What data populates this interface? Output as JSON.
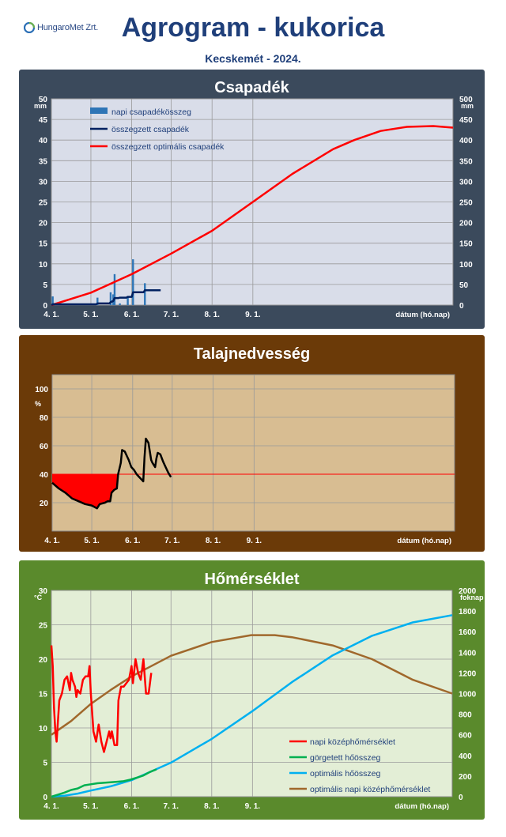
{
  "header": {
    "logo_text": "HungaroMet Zrt.",
    "title": "Agrogram - kukorica",
    "subtitle": "Kecskemét - 2024."
  },
  "chart_data": [
    {
      "type": "bar",
      "title": "Csapadék",
      "ylabel_left": "mm",
      "ylabel_right": "mm",
      "xlabel": "dátum (hó.nap)",
      "x_ticks": [
        "4. 1.",
        "5. 1.",
        "6. 1.",
        "7. 1.",
        "8. 1.",
        "9. 1."
      ],
      "ylim_left": [
        0,
        50
      ],
      "yticks_left": [
        0,
        5,
        10,
        15,
        20,
        25,
        30,
        35,
        40,
        45,
        50
      ],
      "ylim_right": [
        0,
        500
      ],
      "yticks_right": [
        0,
        50,
        100,
        150,
        200,
        250,
        300,
        350,
        400,
        450,
        500
      ],
      "legend": [
        "napi csapadékösszeg",
        "összegzett csapadék",
        "összegzett optimális csapadék"
      ],
      "colors": {
        "bg": "#d9dde9",
        "panel": "#3b4a5c",
        "bar": "#2e75b6",
        "cumulative": "#002060",
        "optimal": "#ff0000"
      },
      "series": [
        {
          "name": "napi csapadékösszeg",
          "axis": "left",
          "points": [
            [
              1,
              2.1
            ],
            [
              2,
              0.5
            ],
            [
              35,
              1.8
            ],
            [
              45,
              3.1
            ],
            [
              47,
              2.6
            ],
            [
              48,
              7.5
            ],
            [
              52,
              0.4
            ],
            [
              58,
              2.2
            ],
            [
              62,
              11.1
            ],
            [
              71,
              5.3
            ]
          ]
        },
        {
          "name": "összegzett csapadék",
          "axis": "right",
          "points": [
            [
              0,
              0
            ],
            [
              1,
              2
            ],
            [
              34,
              2
            ],
            [
              35,
              4
            ],
            [
              44,
              4
            ],
            [
              45,
              7
            ],
            [
              47,
              10
            ],
            [
              48,
              17
            ],
            [
              51,
              17
            ],
            [
              52,
              18
            ],
            [
              57,
              18
            ],
            [
              58,
              20
            ],
            [
              61,
              20
            ],
            [
              62,
              31
            ],
            [
              70,
              31
            ],
            [
              71,
              36
            ],
            [
              83,
              36
            ]
          ]
        },
        {
          "name": "összegzett optimális csapadék",
          "axis": "right",
          "points": [
            [
              0,
              0
            ],
            [
              30,
              30
            ],
            [
              61,
              75
            ],
            [
              91,
              125
            ],
            [
              122,
              180
            ],
            [
              153,
              250
            ],
            [
              183,
              318
            ],
            [
              214,
              378
            ],
            [
              230,
              400
            ],
            [
              250,
              422
            ],
            [
              270,
              432
            ],
            [
              290,
              434
            ],
            [
              305,
              430
            ]
          ]
        }
      ]
    },
    {
      "type": "area",
      "title": "Talajnedvesség",
      "ylabel": "%",
      "xlabel": "dátum (hó.nap)",
      "x_ticks": [
        "4. 1.",
        "5. 1.",
        "6. 1.",
        "7. 1.",
        "8. 1.",
        "9. 1."
      ],
      "ylim": [
        0,
        110
      ],
      "yticks": [
        20,
        40,
        60,
        80,
        100
      ],
      "threshold": 40,
      "colors": {
        "bg": "#d8bd92",
        "panel": "#6b3a08",
        "line": "#000000",
        "fill": "#ff0000",
        "threshold": "#ff0000"
      },
      "series": [
        {
          "name": "",
          "points": [
            [
              0,
              34
            ],
            [
              5,
              30
            ],
            [
              10,
              27
            ],
            [
              15,
              23
            ],
            [
              20,
              21
            ],
            [
              25,
              19
            ],
            [
              30,
              18
            ],
            [
              34,
              16
            ],
            [
              36,
              19
            ],
            [
              40,
              20
            ],
            [
              42,
              21
            ],
            [
              44,
              21
            ],
            [
              45,
              27
            ],
            [
              47,
              29
            ],
            [
              49,
              30
            ],
            [
              50,
              40
            ],
            [
              52,
              48
            ],
            [
              53,
              57
            ],
            [
              55,
              56
            ],
            [
              58,
              50
            ],
            [
              60,
              45
            ],
            [
              62,
              43
            ],
            [
              64,
              40
            ],
            [
              66,
              38
            ],
            [
              68,
              36
            ],
            [
              69,
              35
            ],
            [
              70,
              52
            ],
            [
              71,
              65
            ],
            [
              73,
              62
            ],
            [
              75,
              50
            ],
            [
              76,
              48
            ],
            [
              78,
              45
            ],
            [
              79,
              51
            ],
            [
              80,
              55
            ],
            [
              82,
              54
            ],
            [
              84,
              49
            ],
            [
              86,
              45
            ],
            [
              88,
              41
            ],
            [
              90,
              38
            ]
          ]
        }
      ]
    },
    {
      "type": "line",
      "title": "Hőmérséklet",
      "ylabel_left": "°C",
      "ylabel_right": "foknap",
      "xlabel": "dátum (hó.nap)",
      "x_ticks": [
        "4. 1.",
        "5. 1.",
        "6. 1.",
        "7. 1.",
        "8. 1.",
        "9. 1."
      ],
      "ylim_left": [
        0,
        30
      ],
      "yticks_left": [
        0,
        5,
        10,
        15,
        20,
        25,
        30
      ],
      "ylim_right": [
        0,
        2000
      ],
      "yticks_right": [
        0,
        200,
        400,
        600,
        800,
        1000,
        1200,
        1400,
        1600,
        1800,
        2000
      ],
      "legend": [
        "napi középhőmérséklet",
        "görgetett hőösszeg",
        "optimális hőösszeg",
        "optimális napi középhőmérséklet"
      ],
      "colors": {
        "bg": "#e3eed6",
        "panel": "#5a8a2c",
        "daily": "#ff0000",
        "rolling": "#00b050",
        "optimal_sum": "#00b0f0",
        "optimal_daily": "#a0682c"
      },
      "series": [
        {
          "name": "napi középhőmérséklet",
          "axis": "left",
          "points": [
            [
              0,
              22
            ],
            [
              1,
              19
            ],
            [
              2,
              13
            ],
            [
              3,
              9.5
            ],
            [
              4,
              8
            ],
            [
              5,
              11
            ],
            [
              6,
              14
            ],
            [
              8,
              15
            ],
            [
              10,
              17
            ],
            [
              12,
              17.5
            ],
            [
              14,
              15.5
            ],
            [
              15,
              18
            ],
            [
              16,
              17
            ],
            [
              18,
              16
            ],
            [
              19,
              14.5
            ],
            [
              20,
              15.5
            ],
            [
              22,
              15
            ],
            [
              24,
              17
            ],
            [
              26,
              17.5
            ],
            [
              28,
              17.5
            ],
            [
              29,
              19
            ],
            [
              30,
              15
            ],
            [
              32,
              9.5
            ],
            [
              34,
              8
            ],
            [
              36,
              10.5
            ],
            [
              38,
              8
            ],
            [
              40,
              6.5
            ],
            [
              42,
              8
            ],
            [
              44,
              9.5
            ],
            [
              45,
              8.5
            ],
            [
              46,
              9.5
            ],
            [
              48,
              7.5
            ],
            [
              50,
              7.5
            ],
            [
              51,
              14
            ],
            [
              53,
              16
            ],
            [
              55,
              16
            ],
            [
              57,
              16.5
            ],
            [
              59,
              17
            ],
            [
              61,
              19
            ],
            [
              62,
              16.5
            ],
            [
              64,
              20
            ],
            [
              66,
              18
            ],
            [
              68,
              17
            ],
            [
              70,
              20
            ],
            [
              72,
              15
            ],
            [
              74,
              15
            ],
            [
              76,
              18
            ]
          ]
        },
        {
          "name": "görgetett hőösszeg",
          "axis": "right",
          "points": [
            [
              0,
              0
            ],
            [
              5,
              20
            ],
            [
              10,
              40
            ],
            [
              15,
              65
            ],
            [
              20,
              80
            ],
            [
              25,
              110
            ],
            [
              30,
              120
            ],
            [
              35,
              130
            ],
            [
              40,
              135
            ],
            [
              45,
              140
            ],
            [
              50,
              145
            ],
            [
              55,
              150
            ],
            [
              60,
              165
            ],
            [
              65,
              185
            ],
            [
              70,
              205
            ],
            [
              75,
              240
            ],
            [
              80,
              265
            ]
          ]
        },
        {
          "name": "optimális hőösszeg",
          "axis": "right",
          "points": [
            [
              0,
              0
            ],
            [
              10,
              10
            ],
            [
              20,
              30
            ],
            [
              30,
              60
            ],
            [
              45,
              100
            ],
            [
              61,
              160
            ],
            [
              91,
              330
            ],
            [
              122,
              560
            ],
            [
              153,
              830
            ],
            [
              183,
              1110
            ],
            [
              214,
              1370
            ],
            [
              244,
              1560
            ],
            [
              275,
              1690
            ],
            [
              305,
              1760
            ]
          ]
        },
        {
          "name": "optimális napi középhőmérséklet",
          "axis": "left",
          "points": [
            [
              0,
              9
            ],
            [
              15,
              11
            ],
            [
              30,
              13.5
            ],
            [
              45,
              15.5
            ],
            [
              61,
              17.5
            ],
            [
              91,
              20.5
            ],
            [
              122,
              22.5
            ],
            [
              152,
              23.5
            ],
            [
              170,
              23.5
            ],
            [
              183,
              23.2
            ],
            [
              214,
              22
            ],
            [
              244,
              20
            ],
            [
              275,
              17
            ],
            [
              305,
              15
            ]
          ]
        }
      ]
    }
  ]
}
